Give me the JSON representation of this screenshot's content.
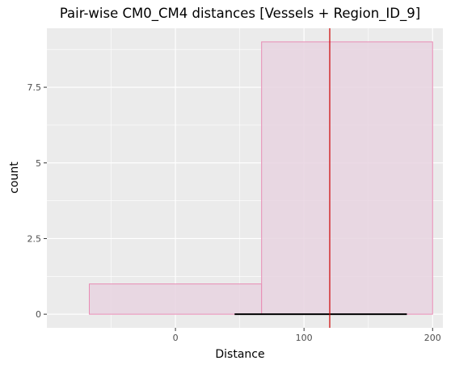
{
  "chart_data": {
    "type": "histogram",
    "title": "Pair-wise CM0_CM4 distances [Vessels + Region_ID_9]",
    "xlabel": "Distance",
    "ylabel": "count",
    "xlim": [
      -100,
      208
    ],
    "ylim": [
      -0.45,
      9.45
    ],
    "x_ticks": [
      0,
      100,
      200
    ],
    "y_ticks": [
      0,
      2.5,
      5,
      7.5
    ],
    "y_tick_labels": [
      "0",
      "2.5",
      "5",
      "7.5"
    ],
    "bins": [
      {
        "x0": -67,
        "x1": 67,
        "count": 1
      },
      {
        "x0": 67,
        "x1": 200,
        "count": 9
      }
    ],
    "vline": {
      "x": 120,
      "color": "#cc0000"
    },
    "hsegment": {
      "x0": 46,
      "x1": 180,
      "y": 0,
      "color": "#000000"
    },
    "colors": {
      "bar_fill": "#e8d4e0",
      "bar_stroke": "#e88cb4",
      "panel": "#ebebeb",
      "grid": "#ffffff"
    },
    "grid": true,
    "legend": "none"
  }
}
